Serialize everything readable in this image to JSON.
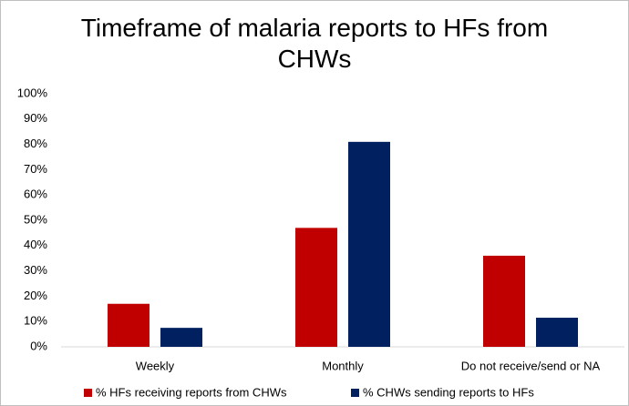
{
  "chart_data": {
    "type": "bar",
    "title": "Timeframe of malaria reports to HFs from CHWs",
    "categories": [
      "Weekly",
      "Monthly",
      "Do not receive/send or NA"
    ],
    "series": [
      {
        "name": "% HFs receiving reports from CHWs",
        "color": "#c00000",
        "values": [
          17,
          47,
          36
        ]
      },
      {
        "name": "% CHWs sending reports to HFs",
        "color": "#002060",
        "values": [
          7.5,
          81,
          11.5
        ]
      }
    ],
    "ylim": [
      0,
      100
    ],
    "yticks": [
      {
        "value": 0,
        "label": "0%"
      },
      {
        "value": 10,
        "label": "10%"
      },
      {
        "value": 20,
        "label": "20%"
      },
      {
        "value": 30,
        "label": "30%"
      },
      {
        "value": 40,
        "label": "40%"
      },
      {
        "value": 50,
        "label": "50%"
      },
      {
        "value": 60,
        "label": "60%"
      },
      {
        "value": 70,
        "label": "70%"
      },
      {
        "value": 80,
        "label": "80%"
      },
      {
        "value": 90,
        "label": "90%"
      },
      {
        "value": 100,
        "label": "100%"
      }
    ],
    "grid": false,
    "legend": "bottom"
  }
}
